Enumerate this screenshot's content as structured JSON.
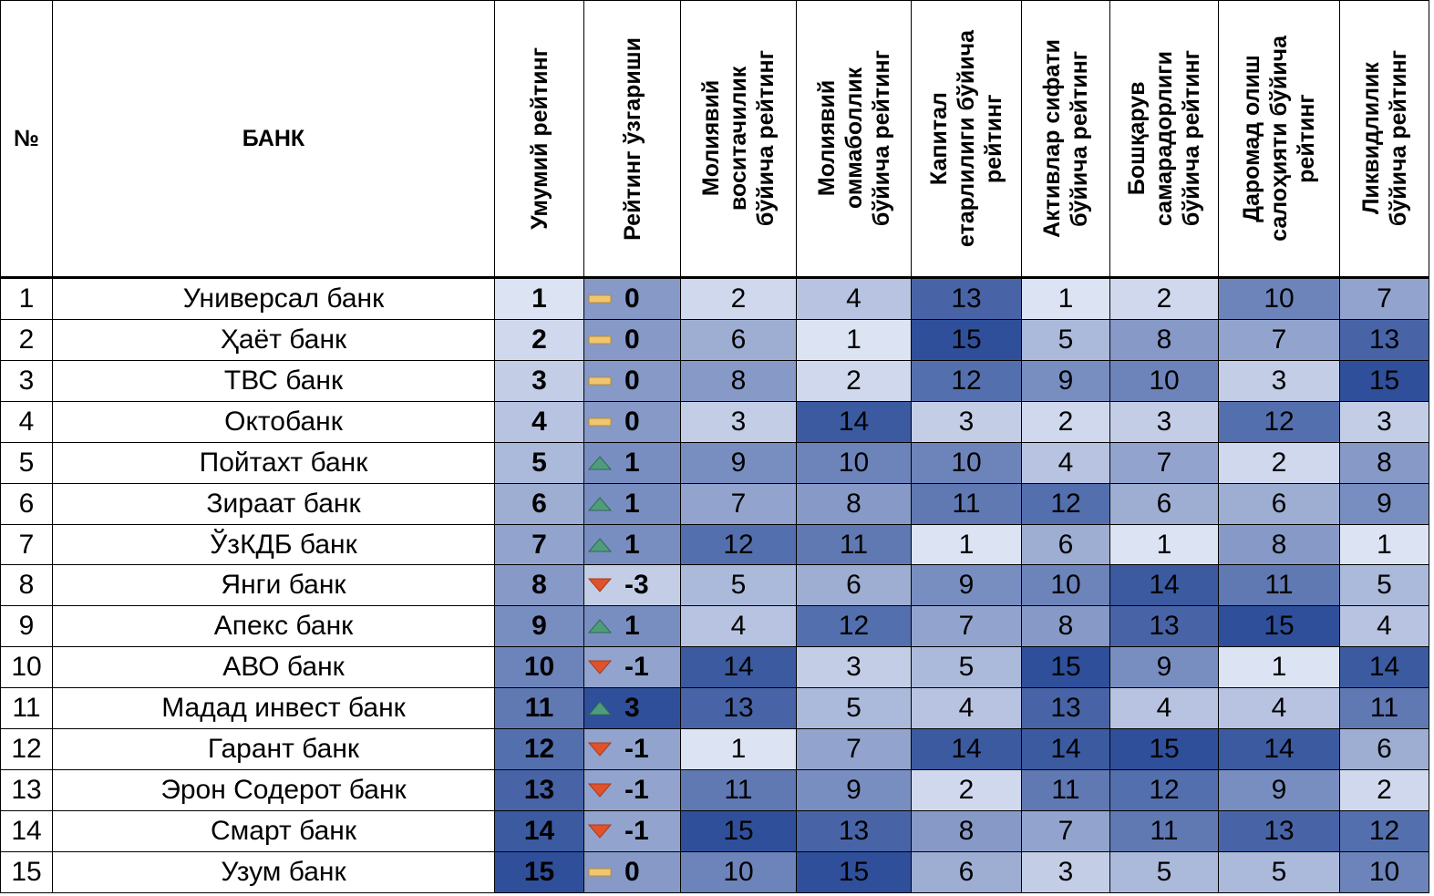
{
  "headers": {
    "num": "№",
    "bank": "БАНК",
    "total": "Умумий рейтинг",
    "change": "Рейтинг ўзгариши",
    "metrics": [
      "Молиявий\nвоситачилик\nбўйича рейтинг",
      "Молиявий\nоммаболлик\nбўйича рейтинг",
      "Капитал\nетарлилиги бўйича\nрейтинг",
      "Активлар сифати\nбўйича рейтинг",
      "Бошқарув\nсамарадорлиги\nбўйича рейтинг",
      "Даромад олиш\nсалоҳияти бўйича\nрейтинг",
      "Ликвидлилик\nбўйича рейтинг"
    ]
  },
  "colors": {
    "scale_light": "#dce3f3",
    "scale_dark": "#2f4f9a",
    "flat_icon": "#f2c66e",
    "up_icon": "#4e9c7c",
    "down_icon": "#e0522b"
  },
  "rows": [
    {
      "num": "1",
      "bank": "Универсал банк",
      "total": "1",
      "change": "0",
      "trend": "flat",
      "metrics": [
        "2",
        "4",
        "13",
        "1",
        "2",
        "10",
        "7"
      ]
    },
    {
      "num": "2",
      "bank": "Ҳаёт банк",
      "total": "2",
      "change": "0",
      "trend": "flat",
      "metrics": [
        "6",
        "1",
        "15",
        "5",
        "8",
        "7",
        "13"
      ]
    },
    {
      "num": "3",
      "bank": "ТВС банк",
      "total": "3",
      "change": "0",
      "trend": "flat",
      "metrics": [
        "8",
        "2",
        "12",
        "9",
        "10",
        "3",
        "15"
      ]
    },
    {
      "num": "4",
      "bank": "Октобанк",
      "total": "4",
      "change": "0",
      "trend": "flat",
      "metrics": [
        "3",
        "14",
        "3",
        "2",
        "3",
        "12",
        "3"
      ]
    },
    {
      "num": "5",
      "bank": "Пойтахт банк",
      "total": "5",
      "change": "1",
      "trend": "up",
      "metrics": [
        "9",
        "10",
        "10",
        "4",
        "7",
        "2",
        "8"
      ]
    },
    {
      "num": "6",
      "bank": "Зираат банк",
      "total": "6",
      "change": "1",
      "trend": "up",
      "metrics": [
        "7",
        "8",
        "11",
        "12",
        "6",
        "6",
        "9"
      ]
    },
    {
      "num": "7",
      "bank": "ЎзКДБ банк",
      "total": "7",
      "change": "1",
      "trend": "up",
      "metrics": [
        "12",
        "11",
        "1",
        "6",
        "1",
        "8",
        "1"
      ]
    },
    {
      "num": "8",
      "bank": "Янги банк",
      "total": "8",
      "change": "-3",
      "trend": "down",
      "metrics": [
        "5",
        "6",
        "9",
        "10",
        "14",
        "11",
        "5"
      ]
    },
    {
      "num": "9",
      "bank": "Апекс банк",
      "total": "9",
      "change": "1",
      "trend": "up",
      "metrics": [
        "4",
        "12",
        "7",
        "8",
        "13",
        "15",
        "4"
      ]
    },
    {
      "num": "10",
      "bank": "АВО банк",
      "total": "10",
      "change": "-1",
      "trend": "down",
      "metrics": [
        "14",
        "3",
        "5",
        "15",
        "9",
        "1",
        "14"
      ]
    },
    {
      "num": "11",
      "bank": "Мадад инвест банк",
      "total": "11",
      "change": "3",
      "trend": "up",
      "metrics": [
        "13",
        "5",
        "4",
        "13",
        "4",
        "4",
        "11"
      ]
    },
    {
      "num": "12",
      "bank": "Гарант банк",
      "total": "12",
      "change": "-1",
      "trend": "down",
      "metrics": [
        "1",
        "7",
        "14",
        "14",
        "15",
        "14",
        "6"
      ]
    },
    {
      "num": "13",
      "bank": "Эрон Содерот банк",
      "total": "13",
      "change": "-1",
      "trend": "down",
      "metrics": [
        "11",
        "9",
        "2",
        "11",
        "12",
        "9",
        "2"
      ]
    },
    {
      "num": "14",
      "bank": "Смарт банк",
      "total": "14",
      "change": "-1",
      "trend": "down",
      "metrics": [
        "15",
        "13",
        "8",
        "7",
        "11",
        "13",
        "12"
      ]
    },
    {
      "num": "15",
      "bank": "Узум банк",
      "total": "15",
      "change": "0",
      "trend": "flat",
      "metrics": [
        "10",
        "15",
        "6",
        "3",
        "5",
        "5",
        "10"
      ]
    }
  ]
}
